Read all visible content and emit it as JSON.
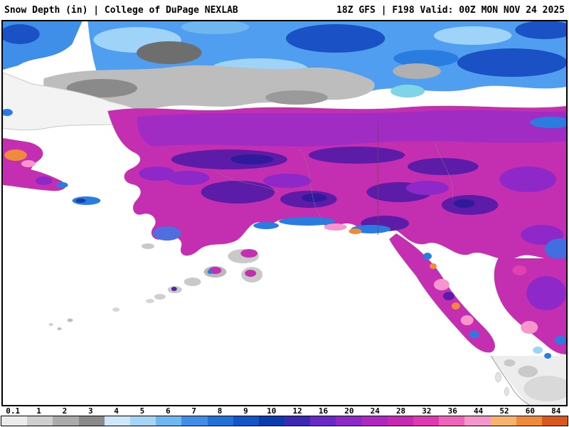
{
  "header": {
    "left_text": "Snow Depth (in) | College of DuPage NEXLAB",
    "product": "Snow Depth (in)",
    "source": "College of DuPage NEXLAB",
    "right_text": "18Z GFS | F198 Valid: 00Z MON NOV 24 2025",
    "model_run": "18Z GFS",
    "forecast_hour": "F198",
    "valid_time": "Valid: 00Z MON NOV 24 2025"
  },
  "map": {
    "ocean_color": "#ffffff",
    "border_color": "#000000",
    "dominant_high_snow_color": "#c32fb0",
    "dominant_mid_snow_color": "#8f28c8"
  },
  "legend": {
    "units": "in",
    "stops": [
      {
        "label": "0.1",
        "color": "#ececec"
      },
      {
        "label": "1",
        "color": "#cfcfcf"
      },
      {
        "label": "2",
        "color": "#ababab"
      },
      {
        "label": "3",
        "color": "#8a8a8a"
      },
      {
        "label": "4",
        "color": "#cde8fa"
      },
      {
        "label": "5",
        "color": "#a5d5f5"
      },
      {
        "label": "6",
        "color": "#6fb7f0"
      },
      {
        "label": "7",
        "color": "#3f8fe8"
      },
      {
        "label": "8",
        "color": "#2072d8"
      },
      {
        "label": "9",
        "color": "#1155c8"
      },
      {
        "label": "10",
        "color": "#0a3ab0"
      },
      {
        "label": "12",
        "color": "#3c28b4"
      },
      {
        "label": "16",
        "color": "#6a28c8"
      },
      {
        "label": "20",
        "color": "#8f28c8"
      },
      {
        "label": "24",
        "color": "#ad28be"
      },
      {
        "label": "28",
        "color": "#c828b4"
      },
      {
        "label": "32",
        "color": "#e038b0"
      },
      {
        "label": "36",
        "color": "#ef64bb"
      },
      {
        "label": "44",
        "color": "#f795cd"
      },
      {
        "label": "52",
        "color": "#f6b46a"
      },
      {
        "label": "60",
        "color": "#ef8a3c"
      },
      {
        "label": "84",
        "color": "#d8581e"
      }
    ]
  }
}
